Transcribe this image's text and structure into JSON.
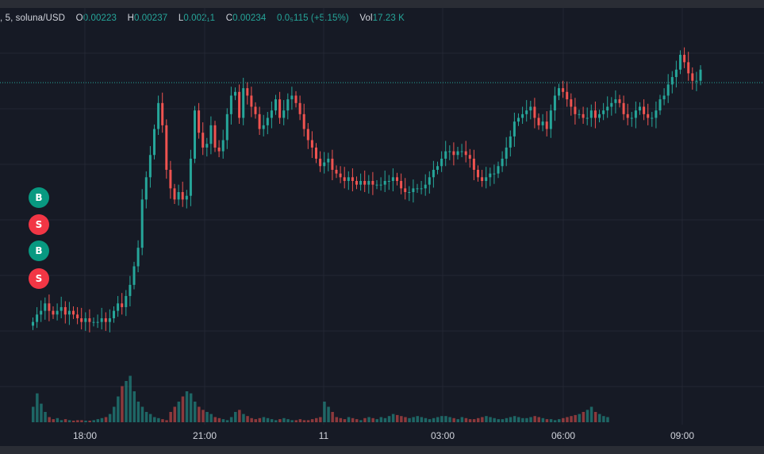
{
  "legend": {
    "prefix": ", 5, soluna/USD",
    "open_label": "O",
    "open": "0.00223",
    "high_label": "H",
    "high": "0.00237",
    "low_label": "L",
    "low": "0.002₁1",
    "close_label": "C",
    "close": "0.00234",
    "change": "0.0₅115 (+5.15%)",
    "vol_label": "Vol",
    "vol": "17.23 K"
  },
  "markers": [
    {
      "label": "B",
      "color": "#089981"
    },
    {
      "label": "S",
      "color": "#f23645"
    },
    {
      "label": "B",
      "color": "#089981"
    },
    {
      "label": "S",
      "color": "#f23645"
    }
  ],
  "chart_data": {
    "type": "candlestick",
    "interval": "5",
    "symbol": "soluna/USD",
    "x_ticks": [
      "18:00",
      "21:00",
      "11",
      "03:00",
      "06:00",
      "09:00"
    ],
    "y_range": [
      0.00164,
      0.00241
    ],
    "up_color": "#26a69a",
    "down_color": "#ef5350",
    "grid": true,
    "price_line": 0.002305,
    "closes": [
      0.00166,
      0.00168,
      0.00169,
      0.00171,
      0.00169,
      0.00168,
      0.00169,
      0.0017,
      0.00168,
      0.00169,
      0.00168,
      0.00167,
      0.00166,
      0.00167,
      0.00166,
      0.00166,
      0.00166,
      0.00167,
      0.00166,
      0.00167,
      0.00169,
      0.00171,
      0.0017,
      0.00173,
      0.00176,
      0.00181,
      0.00186,
      0.00199,
      0.00205,
      0.00211,
      0.00218,
      0.00225,
      0.00219,
      0.00207,
      0.00202,
      0.00199,
      0.00201,
      0.00199,
      0.002,
      0.0021,
      0.00223,
      0.00217,
      0.00213,
      0.00214,
      0.00219,
      0.00213,
      0.00212,
      0.00215,
      0.00222,
      0.00227,
      0.00228,
      0.00221,
      0.00229,
      0.00227,
      0.00224,
      0.00222,
      0.00218,
      0.00219,
      0.00221,
      0.00223,
      0.00226,
      0.00221,
      0.00223,
      0.00226,
      0.00227,
      0.00225,
      0.00222,
      0.00218,
      0.00215,
      0.00213,
      0.0021,
      0.00208,
      0.00209,
      0.0021,
      0.00207,
      0.00206,
      0.00205,
      0.00204,
      0.00205,
      0.00204,
      0.00203,
      0.00204,
      0.00203,
      0.00204,
      0.00203,
      0.00203,
      0.00203,
      0.00204,
      0.00204,
      0.00205,
      0.00204,
      0.00202,
      0.00201,
      0.00201,
      0.00202,
      0.00202,
      0.00202,
      0.00203,
      0.00205,
      0.00207,
      0.00208,
      0.0021,
      0.00212,
      0.00212,
      0.00211,
      0.00212,
      0.00212,
      0.00211,
      0.0021,
      0.00207,
      0.00205,
      0.00204,
      0.00205,
      0.00206,
      0.00206,
      0.00208,
      0.0021,
      0.00213,
      0.00216,
      0.0022,
      0.00221,
      0.00222,
      0.00223,
      0.00224,
      0.00221,
      0.00219,
      0.0022,
      0.00218,
      0.00223,
      0.00227,
      0.00229,
      0.00228,
      0.00226,
      0.00224,
      0.00222,
      0.00222,
      0.00221,
      0.00221,
      0.00223,
      0.00221,
      0.00222,
      0.00223,
      0.00224,
      0.00225,
      0.00226,
      0.00225,
      0.00222,
      0.00221,
      0.00221,
      0.00223,
      0.00224,
      0.00222,
      0.00221,
      0.00221,
      0.00223,
      0.00226,
      0.00227,
      0.0023,
      0.00232,
      0.00234,
      0.00238,
      0.00236,
      0.00233,
      0.00231,
      0.00231,
      0.00234
    ]
  },
  "volume_data": {
    "up": [
      0.15,
      0.28,
      0.18,
      0.1,
      0.05,
      0.03,
      0.04,
      0.02,
      0.03,
      0.02,
      0.01,
      0.02,
      0.02,
      0.01,
      0.01,
      0.02,
      0.03,
      0.04,
      0.05,
      0.08,
      0.15,
      0.25,
      0.35,
      0.4,
      0.45,
      0.3,
      0.2,
      0.15,
      0.1,
      0.08,
      0.05,
      0.04,
      0.03,
      0.02,
      0.1,
      0.15,
      0.2,
      0.25,
      0.3,
      0.28,
      0.2,
      0.15,
      0.12,
      0.1,
      0.08,
      0.05,
      0.04,
      0.03,
      0.02,
      0.05,
      0.1,
      0.12,
      0.08,
      0.06,
      0.04,
      0.03,
      0.04,
      0.05,
      0.04,
      0.03,
      0.02,
      0.03,
      0.04,
      0.03,
      0.02,
      0.02,
      0.03,
      0.02,
      0.02,
      0.03,
      0.04,
      0.05,
      0.2,
      0.15,
      0.1,
      0.05,
      0.04,
      0.03,
      0.05,
      0.04,
      0.03,
      0.02,
      0.04,
      0.05,
      0.04,
      0.03,
      0.05,
      0.04,
      0.06,
      0.08,
      0.07,
      0.06,
      0.05,
      0.04,
      0.05,
      0.06,
      0.05,
      0.04,
      0.03,
      0.04,
      0.05,
      0.06,
      0.06,
      0.05,
      0.04,
      0.03,
      0.05,
      0.04,
      0.03,
      0.03,
      0.04,
      0.05,
      0.06,
      0.05,
      0.04,
      0.03,
      0.03,
      0.04,
      0.05,
      0.06,
      0.05,
      0.04,
      0.04,
      0.05,
      0.06,
      0.05,
      0.04,
      0.03,
      0.03,
      0.02,
      0.03,
      0.04,
      0.05,
      0.06,
      0.07,
      0.08,
      0.1,
      0.12,
      0.15,
      0.1,
      0.08,
      0.06,
      0.05
    ],
    "max": 1.0
  }
}
